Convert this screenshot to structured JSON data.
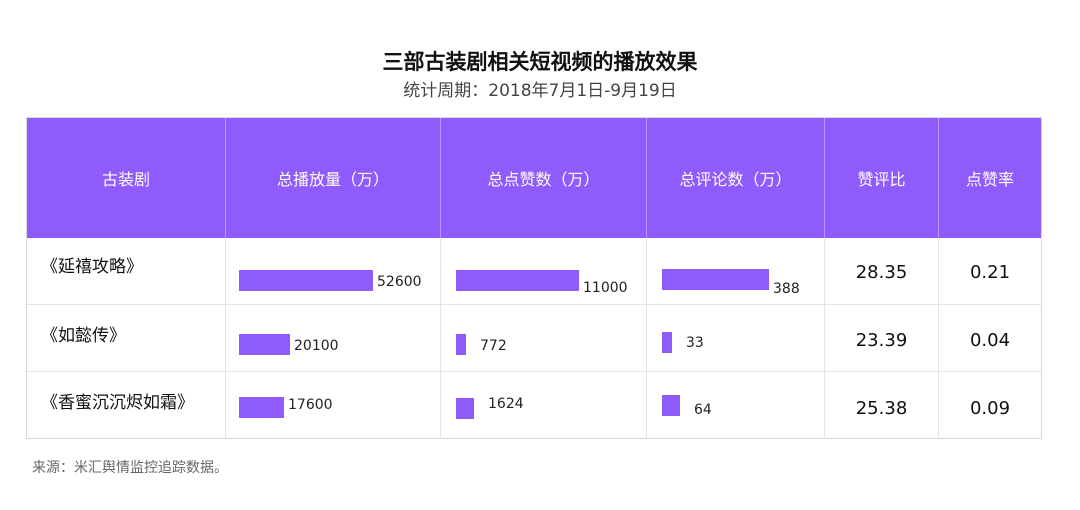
{
  "title": "三部古装剧相关短视频的播放效果",
  "subtitle": "统计周期：2018年7月1日-9月19日",
  "source": "来源：米汇舆情监控追踪数据。",
  "colors": {
    "header_bg": "#8f5bfc",
    "bar": "#8f5bfc"
  },
  "chart_data": {
    "type": "table",
    "columns": [
      "古装剧",
      "总播放量（万）",
      "总点赞数（万）",
      "总评论数（万）",
      "赞评比",
      "点赞率"
    ],
    "rows": [
      {
        "drama": "《延禧攻略》",
        "plays": 52600,
        "plays_label": "52600",
        "likes": 11000,
        "likes_label": "11000",
        "comments": 388,
        "comments_label": "388",
        "like_comment_ratio": "28.35",
        "like_rate": "0.21"
      },
      {
        "drama": "《如懿传》",
        "plays": 20100,
        "plays_label": "20100",
        "likes": 772,
        "likes_label": "772",
        "comments": 33,
        "comments_label": "33",
        "like_comment_ratio": "23.39",
        "like_rate": "0.04"
      },
      {
        "drama": "《香蜜沉沉烬如霜》",
        "plays": 17600,
        "plays_label": "17600",
        "likes": 1624,
        "likes_label": "1624",
        "comments": 64,
        "comments_label": "64",
        "like_comment_ratio": "25.38",
        "like_rate": "0.09"
      }
    ]
  }
}
